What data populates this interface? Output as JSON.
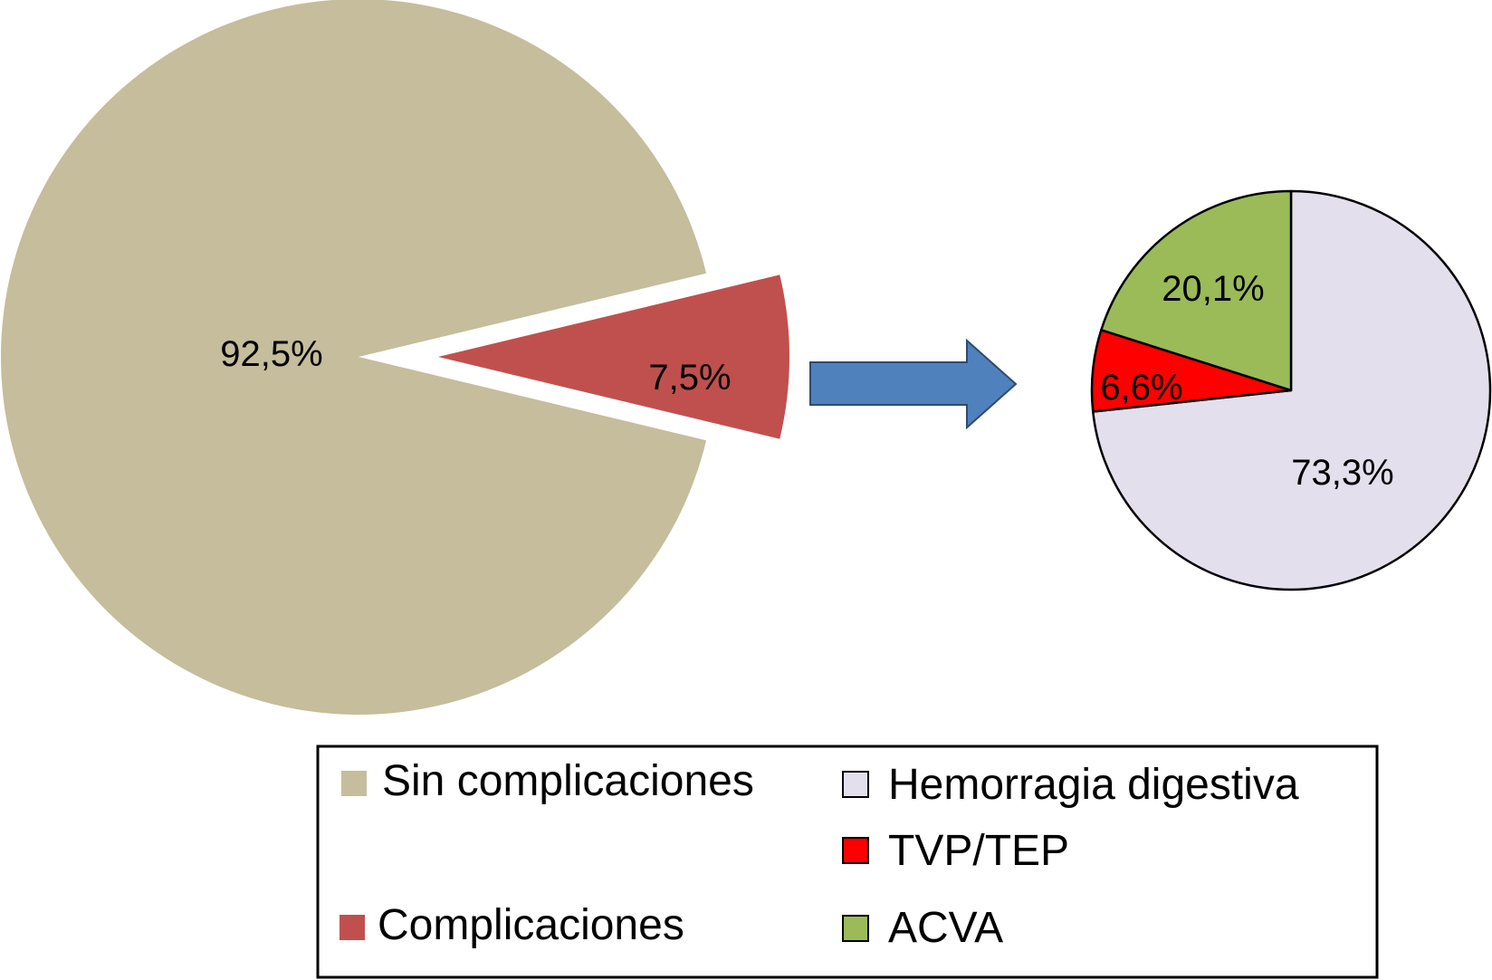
{
  "chart_data": [
    {
      "type": "pie",
      "name": "main",
      "slices": [
        {
          "label": "Sin complicaciones",
          "value": 92.5,
          "display": "92,5%",
          "color": "#c5bd9b",
          "exploded": false
        },
        {
          "label": "Complicaciones",
          "value": 7.5,
          "display": "7,5%",
          "color": "#c0504d",
          "exploded": true
        }
      ]
    },
    {
      "type": "pie",
      "name": "complications-breakdown",
      "slices": [
        {
          "label": "Hemorragia digestiva",
          "value": 73.3,
          "display": "73,3%",
          "color": "#e4dfec"
        },
        {
          "label": "TVP/TEP",
          "value": 6.6,
          "display": "6,6%",
          "color": "#ff0000"
        },
        {
          "label": "ACVA",
          "value": 20.1,
          "display": "20,1%",
          "color": "#9bbb59"
        }
      ]
    }
  ],
  "arrow": {
    "color": "#4f81bd"
  },
  "legend": {
    "left": [
      {
        "label": "Sin complicaciones",
        "color": "#c5bd9b"
      },
      {
        "label": "Complicaciones",
        "color": "#c0504d"
      }
    ],
    "right": [
      {
        "label": "Hemorragia digestiva",
        "color": "#e4dfec"
      },
      {
        "label": "TVP/TEP",
        "color": "#ff0000"
      },
      {
        "label": "ACVA",
        "color": "#9bbb59"
      }
    ]
  }
}
